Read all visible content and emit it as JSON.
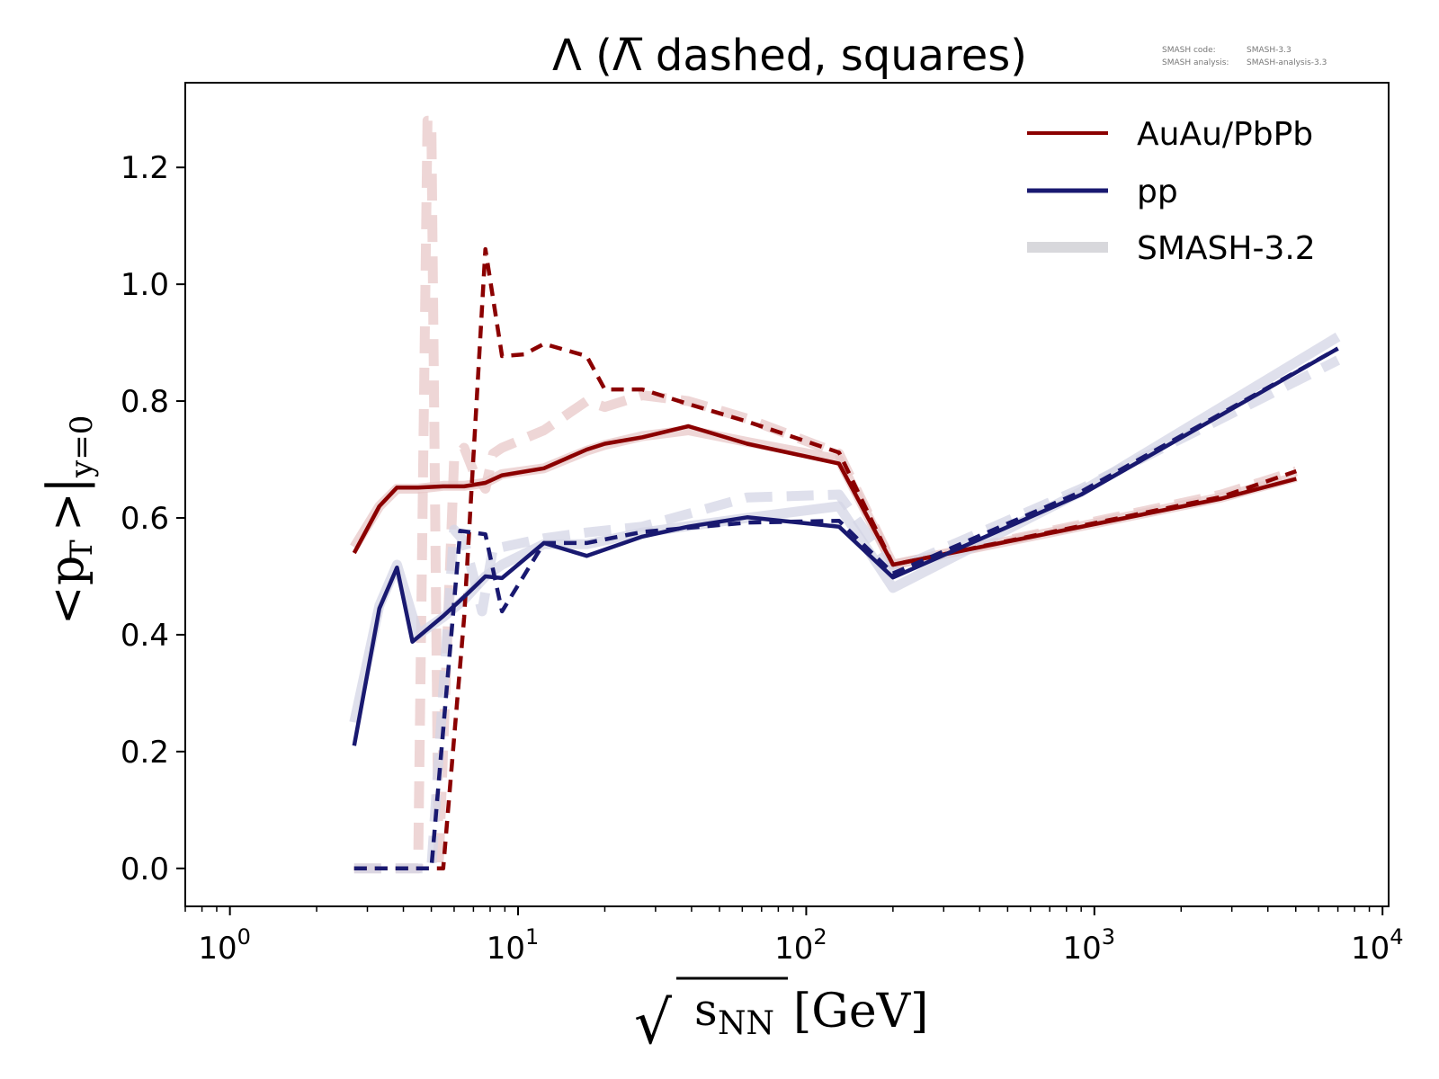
{
  "chart_data": {
    "type": "line",
    "title": "Λ (Λ̅ dashed, squares)",
    "credits": {
      "code_label": "SMASH code:",
      "code_value": "SMASH-3.3",
      "analysis_label": "SMASH analysis:",
      "analysis_value": "SMASH-analysis-3.3"
    },
    "xlabel": {
      "root": "√",
      "s": "s",
      "sub": "NN",
      "unit": "[GeV]"
    },
    "ylabel": {
      "lt": "<",
      "p": "p",
      "sub": "T",
      "gt": ">",
      "bar": "|",
      "ysub": "y=0"
    },
    "xscale": "log",
    "xlim": [
      0.7,
      10500
    ],
    "ylim": [
      -0.065,
      1.345
    ],
    "xticks": [
      {
        "value": 1,
        "base": "10",
        "exp": "0"
      },
      {
        "value": 10,
        "base": "10",
        "exp": "1"
      },
      {
        "value": 100,
        "base": "10",
        "exp": "2"
      },
      {
        "value": 1000,
        "base": "10",
        "exp": "3"
      },
      {
        "value": 10000,
        "base": "10",
        "exp": "4"
      }
    ],
    "yticks": [
      "0.0",
      "0.2",
      "0.4",
      "0.6",
      "0.8",
      "1.0",
      "1.2"
    ],
    "legend": {
      "position": "top-right",
      "entries": [
        {
          "label": "AuAu/PbPb",
          "color": "#8b0000",
          "style": "solid"
        },
        {
          "label": "pp",
          "color": "#191970",
          "style": "solid"
        },
        {
          "label": "SMASH-3.2",
          "color": "#cccccc",
          "style": "wide"
        }
      ]
    },
    "series": [
      {
        "name": "SMASH-3.2 AuAu Λ",
        "color": "#e8c8c8",
        "style": "ref-solid",
        "points": [
          [
            2.7,
            0.55
          ],
          [
            3.3,
            0.62
          ],
          [
            3.8,
            0.65
          ],
          [
            4.5,
            0.65
          ],
          [
            5.5,
            0.655
          ],
          [
            6.5,
            0.655
          ],
          [
            7.7,
            0.66
          ],
          [
            8.8,
            0.675
          ],
          [
            12.3,
            0.685
          ],
          [
            17.3,
            0.715
          ],
          [
            20,
            0.725
          ],
          [
            27,
            0.74
          ],
          [
            39,
            0.75
          ],
          [
            62.4,
            0.73
          ],
          [
            130,
            0.7
          ],
          [
            200,
            0.52
          ],
          [
            2760,
            0.635
          ],
          [
            5020,
            0.67
          ]
        ]
      },
      {
        "name": "SMASH-3.2 AuAu anti-Λ",
        "color": "#e8c8c8",
        "style": "ref-dashed",
        "points": [
          [
            2.7,
            0.0
          ],
          [
            3.3,
            0.0
          ],
          [
            3.8,
            0.0
          ],
          [
            4.5,
            0.0
          ],
          [
            4.85,
            1.28
          ],
          [
            5.0,
            1.28
          ],
          [
            5.3,
            0.0
          ],
          [
            6.0,
            0.7
          ],
          [
            6.5,
            0.72
          ],
          [
            7.0,
            0.68
          ],
          [
            7.7,
            0.65
          ],
          [
            8.2,
            0.71
          ],
          [
            8.8,
            0.72
          ],
          [
            12.3,
            0.75
          ],
          [
            17.3,
            0.8
          ],
          [
            20,
            0.79
          ],
          [
            27,
            0.81
          ],
          [
            39,
            0.8
          ],
          [
            62.4,
            0.77
          ],
          [
            130,
            0.71
          ],
          [
            200,
            0.52
          ],
          [
            2760,
            0.64
          ],
          [
            5020,
            0.68
          ]
        ]
      },
      {
        "name": "SMASH-3.2 pp Λ",
        "color": "#d4d6e6",
        "style": "ref-solid",
        "points": [
          [
            2.7,
            0.25
          ],
          [
            3.3,
            0.45
          ],
          [
            3.8,
            0.52
          ],
          [
            4.5,
            0.4
          ],
          [
            5.5,
            0.43
          ],
          [
            6.5,
            0.46
          ],
          [
            7.7,
            0.5
          ],
          [
            8.8,
            0.52
          ],
          [
            12.3,
            0.555
          ],
          [
            17.3,
            0.555
          ],
          [
            27,
            0.575
          ],
          [
            62.4,
            0.6
          ],
          [
            130,
            0.62
          ],
          [
            200,
            0.48
          ],
          [
            900,
            0.645
          ],
          [
            7000,
            0.91
          ]
        ]
      },
      {
        "name": "SMASH-3.2 pp anti-Λ",
        "color": "#d4d6e6",
        "style": "ref-dashed",
        "points": [
          [
            2.7,
            0.0
          ],
          [
            3.3,
            0.0
          ],
          [
            4.5,
            0.0
          ],
          [
            5.0,
            0.0
          ],
          [
            6.0,
            0.58
          ],
          [
            6.5,
            0.56
          ],
          [
            7.0,
            0.5
          ],
          [
            7.5,
            0.44
          ],
          [
            8.2,
            0.55
          ],
          [
            8.8,
            0.55
          ],
          [
            12.3,
            0.565
          ],
          [
            17.3,
            0.575
          ],
          [
            27,
            0.585
          ],
          [
            62.4,
            0.635
          ],
          [
            130,
            0.64
          ],
          [
            200,
            0.51
          ],
          [
            900,
            0.65
          ],
          [
            7000,
            0.87
          ]
        ]
      },
      {
        "name": "AuAu/PbPb Λ",
        "color": "#8b0000",
        "style": "solid",
        "points": [
          [
            2.7,
            0.54
          ],
          [
            3.3,
            0.62
          ],
          [
            3.8,
            0.652
          ],
          [
            4.5,
            0.652
          ],
          [
            5.5,
            0.654
          ],
          [
            6.5,
            0.654
          ],
          [
            7.7,
            0.66
          ],
          [
            8.8,
            0.673
          ],
          [
            12.3,
            0.685
          ],
          [
            17.3,
            0.717
          ],
          [
            20,
            0.727
          ],
          [
            27,
            0.738
          ],
          [
            39,
            0.757
          ],
          [
            62.4,
            0.727
          ],
          [
            130,
            0.693
          ],
          [
            200,
            0.52
          ],
          [
            2760,
            0.633
          ],
          [
            5020,
            0.667
          ]
        ]
      },
      {
        "name": "AuAu/PbPb anti-Λ",
        "color": "#8b0000",
        "style": "dashed",
        "points": [
          [
            2.7,
            0.0
          ],
          [
            3.3,
            0.0
          ],
          [
            4.5,
            0.0
          ],
          [
            5.5,
            0.0
          ],
          [
            6.5,
            0.43
          ],
          [
            7.7,
            1.06
          ],
          [
            8.8,
            0.877
          ],
          [
            10.5,
            0.88
          ],
          [
            12.3,
            0.898
          ],
          [
            17.3,
            0.877
          ],
          [
            20,
            0.82
          ],
          [
            27,
            0.82
          ],
          [
            39,
            0.795
          ],
          [
            62.4,
            0.765
          ],
          [
            130,
            0.712
          ],
          [
            200,
            0.52
          ],
          [
            2760,
            0.636
          ],
          [
            5020,
            0.68
          ]
        ]
      },
      {
        "name": "pp Λ",
        "color": "#191970",
        "style": "solid",
        "points": [
          [
            2.7,
            0.21
          ],
          [
            3.3,
            0.445
          ],
          [
            3.8,
            0.515
          ],
          [
            4.3,
            0.388
          ],
          [
            5.5,
            0.432
          ],
          [
            6.5,
            0.465
          ],
          [
            7.7,
            0.5
          ],
          [
            8.8,
            0.497
          ],
          [
            12.3,
            0.557
          ],
          [
            17.3,
            0.535
          ],
          [
            27,
            0.568
          ],
          [
            39,
            0.585
          ],
          [
            62.4,
            0.601
          ],
          [
            130,
            0.585
          ],
          [
            200,
            0.498
          ],
          [
            900,
            0.64
          ],
          [
            7000,
            0.89
          ]
        ]
      },
      {
        "name": "pp anti-Λ",
        "color": "#191970",
        "style": "dashed",
        "points": [
          [
            2.7,
            0.0
          ],
          [
            3.3,
            0.0
          ],
          [
            4.5,
            0.0
          ],
          [
            5.0,
            0.0
          ],
          [
            6.3,
            0.578
          ],
          [
            7.7,
            0.572
          ],
          [
            8.8,
            0.44
          ],
          [
            12.3,
            0.557
          ],
          [
            17.3,
            0.557
          ],
          [
            27,
            0.576
          ],
          [
            62.4,
            0.592
          ],
          [
            130,
            0.595
          ],
          [
            200,
            0.505
          ],
          [
            900,
            0.645
          ],
          [
            7000,
            0.89
          ]
        ]
      }
    ]
  }
}
